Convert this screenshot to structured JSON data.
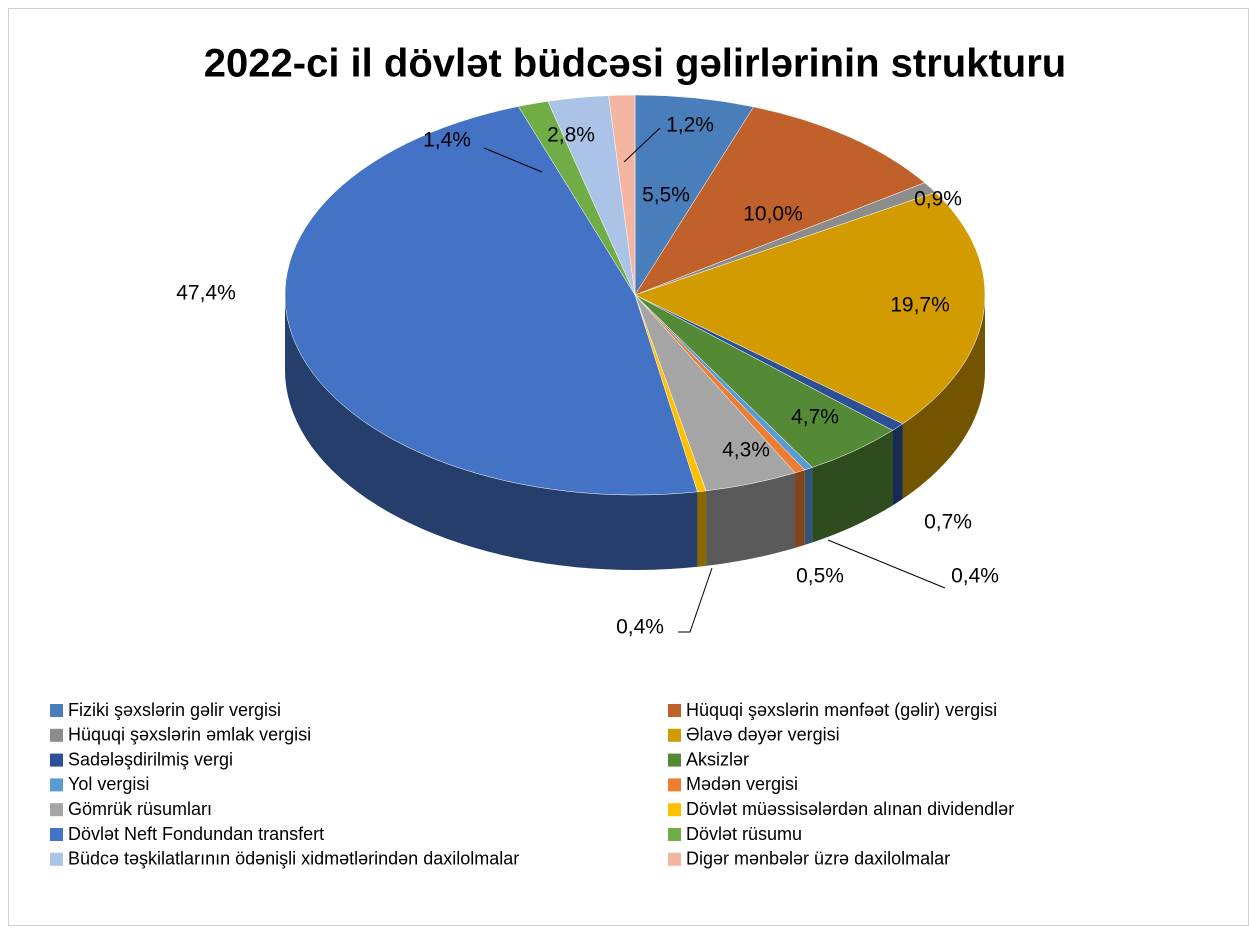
{
  "chart_data": {
    "type": "pie",
    "title": "2022-ci il dövlət büdcəsi gəlirlərinin strukturu",
    "categories": [
      "Fiziki şəxslərin gəlir vergisi",
      "Hüquqi şəxslərin mənfəət (gəlir) vergisi",
      "Hüquqi şəxslərin əmlak vergisi",
      "Əlavə dəyər vergisi",
      "Sadələşdirilmiş vergi",
      "Aksizlər",
      "Yol vergisi",
      "Mədən vergisi",
      "Gömrük rüsumları",
      "Dövlət müəssisələrdən alınan dividendlər",
      "Dövlət Neft Fondundan transfert",
      "Dövlət rüsumu",
      "Büdcə təşkilatlarının ödənişli xidmətlərindən daxilolmalar",
      "Digər mənbələr üzrə daxilolmalar"
    ],
    "values": [
      5.5,
      10.0,
      0.9,
      19.7,
      0.7,
      4.7,
      0.4,
      0.5,
      4.3,
      0.4,
      47.4,
      1.4,
      2.8,
      1.2
    ],
    "value_labels": [
      "5,5%",
      "10,0%",
      "0,9%",
      "19,7%",
      "0,7%",
      "4,7%",
      "0,4%",
      "0,5%",
      "4,3%",
      "0,4%",
      "47,4%",
      "1,4%",
      "2,8%",
      "1,2%"
    ],
    "colors": [
      "#4a7ebb",
      "#c0612b",
      "#8c8c8c",
      "#d29b00",
      "#2c4f95",
      "#548a35",
      "#5b9bd5",
      "#ed7d31",
      "#a5a5a5",
      "#ffc000",
      "#4472c4",
      "#70ad47",
      "#abc3e6",
      "#f4b6a0"
    ],
    "legend": "bottom"
  }
}
